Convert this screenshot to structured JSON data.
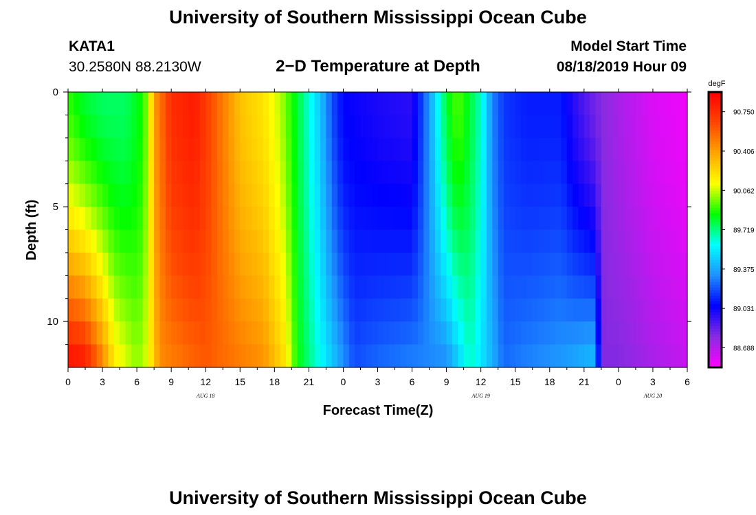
{
  "page": {
    "title_top": "University of Southern Mississippi Ocean Cube",
    "title_bottom": "University of Southern Mississippi Ocean Cube",
    "station_id": "KATA1",
    "station_coords": "30.2580N 88.2130W",
    "plot_subtitle": "2−D Temperature at Depth",
    "model_start_label": "Model Start Time",
    "model_start_value": "08/18/2019 Hour 09"
  },
  "colors": {
    "scale": [
      "#ff00ff",
      "#8a2be2",
      "#0000ff",
      "#1e90ff",
      "#00ffff",
      "#00ff00",
      "#ffff00",
      "#ffa500",
      "#ff4500",
      "#ff0000"
    ]
  },
  "chart_data": {
    "type": "heatmap",
    "title": "2−D Temperature at Depth",
    "xlabel": "Forecast Time(Z)",
    "ylabel": "Depth (ft)",
    "x_hours": [
      0,
      3,
      6,
      9,
      12,
      15,
      18,
      21,
      24,
      27,
      30,
      33,
      36,
      39,
      42,
      45,
      48,
      51,
      54
    ],
    "x_tick_labels": [
      "0",
      "3",
      "6",
      "9",
      "12",
      "15",
      "18",
      "21",
      "0",
      "3",
      "6",
      "9",
      "12",
      "15",
      "18",
      "21",
      "0",
      "3",
      "6"
    ],
    "xlim": [
      0,
      54
    ],
    "date_labels": [
      {
        "label": "AUG 18",
        "hour": 12
      },
      {
        "label": "AUG 19",
        "hour": 36
      },
      {
        "label": "AUG 20",
        "hour": 51
      }
    ],
    "y_ticks": [
      0,
      5,
      10
    ],
    "y_tick_labels": [
      "0",
      "5",
      "10"
    ],
    "ylim": [
      0,
      12
    ],
    "y_inverted": true,
    "colorbar": {
      "unit": "degF",
      "tick_labels": [
        "90.750",
        "90.406",
        "90.062",
        "89.719",
        "89.375",
        "89.031",
        "88.688"
      ],
      "tick_values": [
        90.75,
        90.406,
        90.062,
        89.719,
        89.375,
        89.031,
        88.688
      ],
      "min": 88.516,
      "max": 90.922
    },
    "time_cols": 108,
    "depth_rows": 12,
    "surface_profile": [
      [
        0,
        89.9
      ],
      [
        1.5,
        89.8
      ],
      [
        3,
        89.75
      ],
      [
        5,
        89.75
      ],
      [
        6.3,
        89.85
      ],
      [
        7,
        90.0
      ],
      [
        7.5,
        90.4
      ],
      [
        9,
        90.75
      ],
      [
        11,
        90.82
      ],
      [
        12,
        90.7
      ],
      [
        15,
        90.3
      ],
      [
        17,
        90.2
      ],
      [
        18.5,
        90.05
      ],
      [
        20,
        89.8
      ],
      [
        22,
        89.45
      ],
      [
        23,
        89.2
      ],
      [
        24,
        89.05
      ],
      [
        27,
        89.0
      ],
      [
        30,
        88.97
      ],
      [
        31,
        89.2
      ],
      [
        32,
        89.5
      ],
      [
        33,
        89.8
      ],
      [
        34,
        89.95
      ],
      [
        35,
        89.8
      ],
      [
        36,
        89.65
      ],
      [
        37,
        89.3
      ],
      [
        38,
        89.15
      ],
      [
        40,
        89.1
      ],
      [
        43,
        89.1
      ],
      [
        44,
        88.98
      ],
      [
        46,
        88.82
      ],
      [
        48,
        88.72
      ],
      [
        51,
        88.6
      ],
      [
        54,
        88.55
      ]
    ],
    "bottom_profile": [
      [
        0,
        90.9
      ],
      [
        1.5,
        90.85
      ],
      [
        3,
        90.5
      ],
      [
        4,
        90.2
      ],
      [
        6,
        90.0
      ],
      [
        7,
        90.1
      ],
      [
        8,
        90.45
      ],
      [
        12,
        90.6
      ],
      [
        17,
        90.45
      ],
      [
        19,
        90.2
      ],
      [
        20,
        89.85
      ],
      [
        22,
        89.6
      ],
      [
        25,
        89.2
      ],
      [
        27,
        89.25
      ],
      [
        30,
        89.3
      ],
      [
        33,
        89.3
      ],
      [
        34,
        89.45
      ],
      [
        35,
        89.65
      ],
      [
        37,
        89.4
      ],
      [
        38,
        89.25
      ],
      [
        40,
        89.3
      ],
      [
        43,
        89.35
      ],
      [
        46,
        89.45
      ],
      [
        46.5,
        88.8
      ],
      [
        48,
        88.8
      ],
      [
        51,
        88.72
      ],
      [
        54,
        88.65
      ]
    ]
  }
}
